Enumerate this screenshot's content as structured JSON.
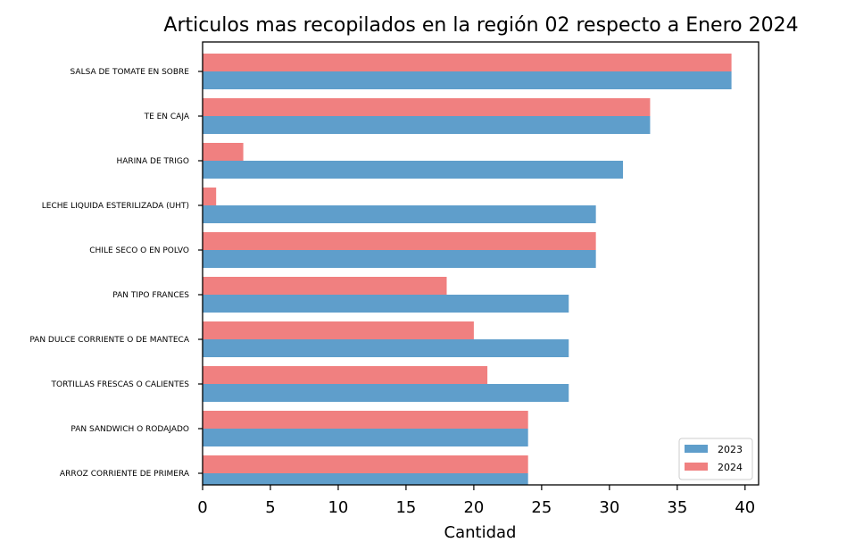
{
  "chart_data": {
    "type": "bar",
    "orientation": "horizontal",
    "title": "Articulos mas recopilados en la región 02 respecto a Enero 2024",
    "xlabel": "Cantidad",
    "ylabel": "",
    "xlim": [
      0,
      41
    ],
    "xticks": [
      0,
      5,
      10,
      15,
      20,
      25,
      30,
      35,
      40
    ],
    "grid": false,
    "legend_position": "lower-right",
    "categories": [
      "SALSA DE TOMATE EN SOBRE",
      "TE EN CAJA",
      "HARINA DE TRIGO",
      "LECHE LIQUIDA ESTERILIZADA (UHT)",
      "CHILE SECO O EN POLVO",
      "PAN TIPO FRANCES",
      "PAN DULCE CORRIENTE O DE MANTECA",
      "TORTILLAS FRESCAS O CALIENTES",
      "PAN SANDWICH O RODAJADO",
      "ARROZ CORRIENTE DE PRIMERA"
    ],
    "series": [
      {
        "name": "2023",
        "color": "#5f9ecb",
        "values": [
          39,
          33,
          31,
          29,
          29,
          27,
          27,
          27,
          24,
          24
        ]
      },
      {
        "name": "2024",
        "color": "#f08080",
        "values": [
          39,
          33,
          3,
          1,
          29,
          18,
          20,
          21,
          24,
          24
        ]
      }
    ]
  }
}
